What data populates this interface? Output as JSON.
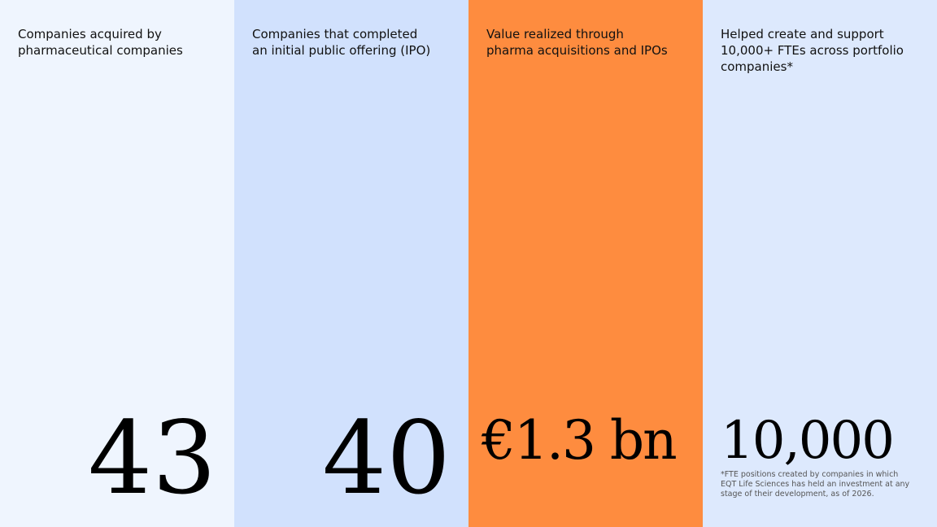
{
  "panels": [
    {
      "label": [
        "Companies acquired by",
        "pharmaceutical companies"
      ],
      "stat": "43"
    },
    {
      "label": [
        "Companies that completed",
        "an initial public offering (IPO)"
      ],
      "stat": "40"
    },
    {
      "label": [
        "Value realized through",
        "pharma acquisitions and IPOs"
      ],
      "stat": "€1.3 bn"
    },
    {
      "label": [
        "Helped create and support",
        "10,000+ FTEs across portfolio",
        "companies*"
      ],
      "stat": "10,000",
      "footnote": [
        "*FTE positions created by companies in which",
        "EQT Life Sciences has held an investment at any",
        "stage of their development, as of 2026."
      ]
    }
  ]
}
